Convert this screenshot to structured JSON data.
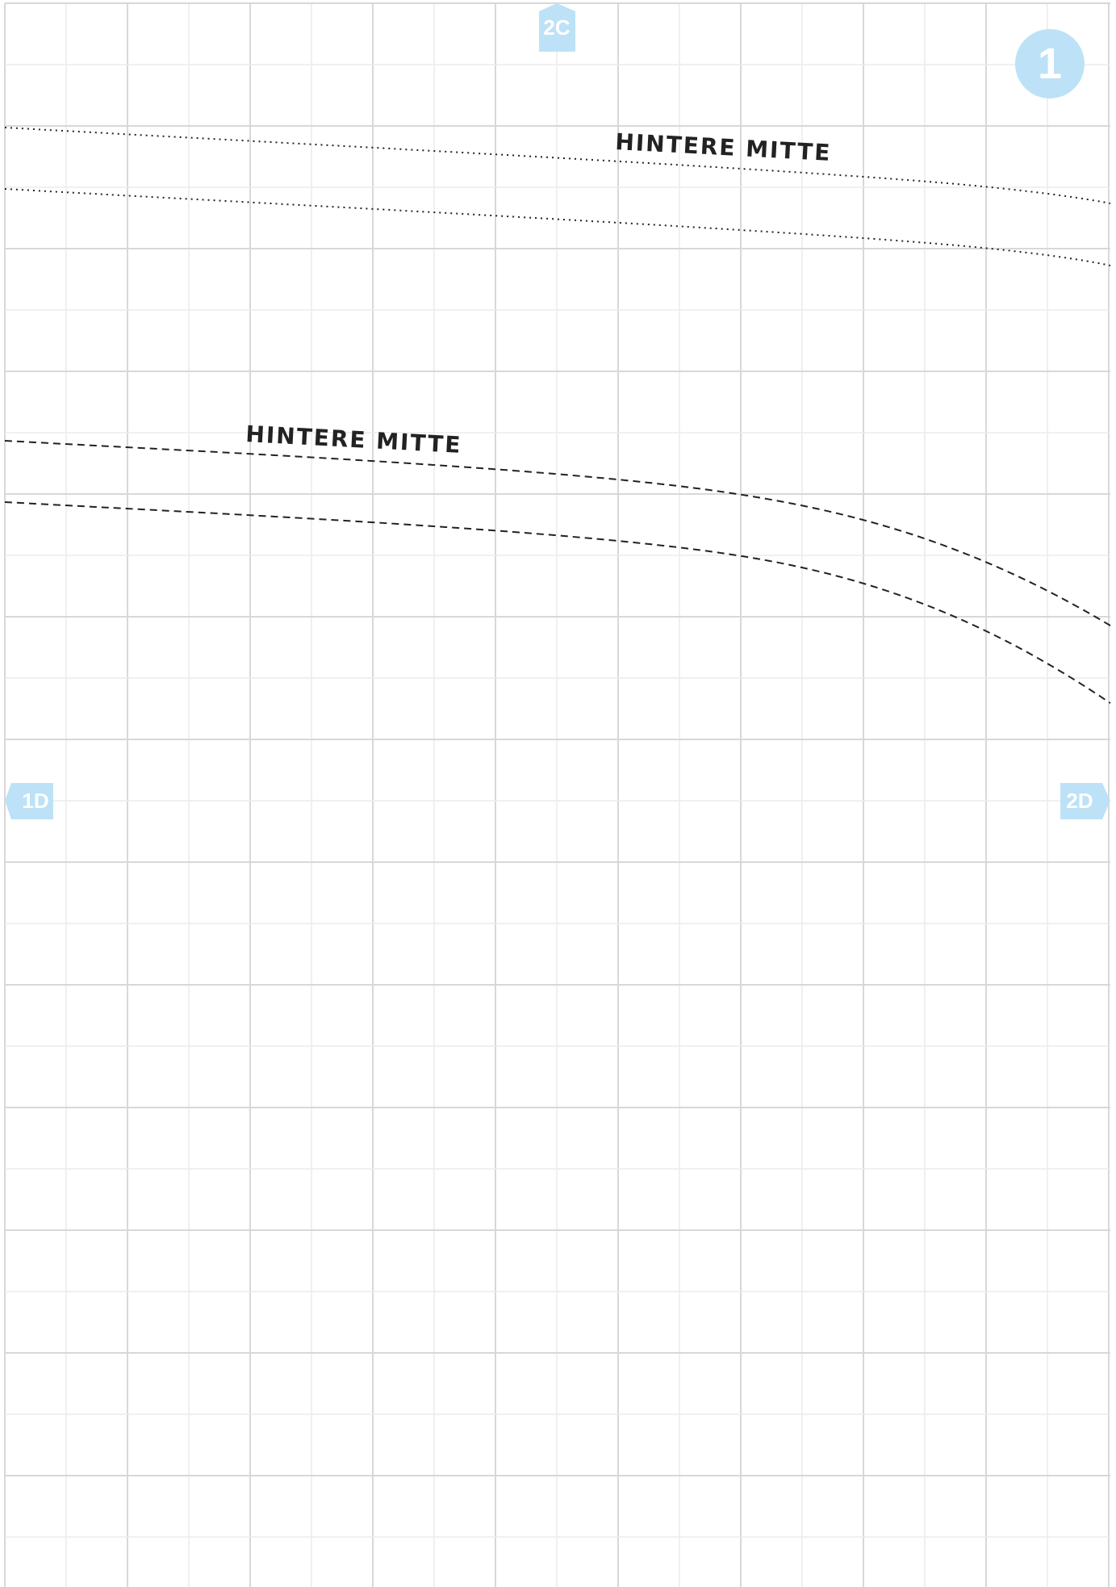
{
  "sheet": {
    "page_number": "1",
    "labels": {
      "center_back_upper": "HINTERE MITTE",
      "center_back_lower": "HINTERE MITTE"
    },
    "markers": {
      "top": "2C",
      "left": "1D",
      "right": "2D"
    }
  },
  "colors": {
    "grid_minor": "#ececec",
    "grid_major": "#d8d8d8",
    "marker_fill": "#bde2f7",
    "marker_text": "#ffffff",
    "line": "#222222"
  }
}
